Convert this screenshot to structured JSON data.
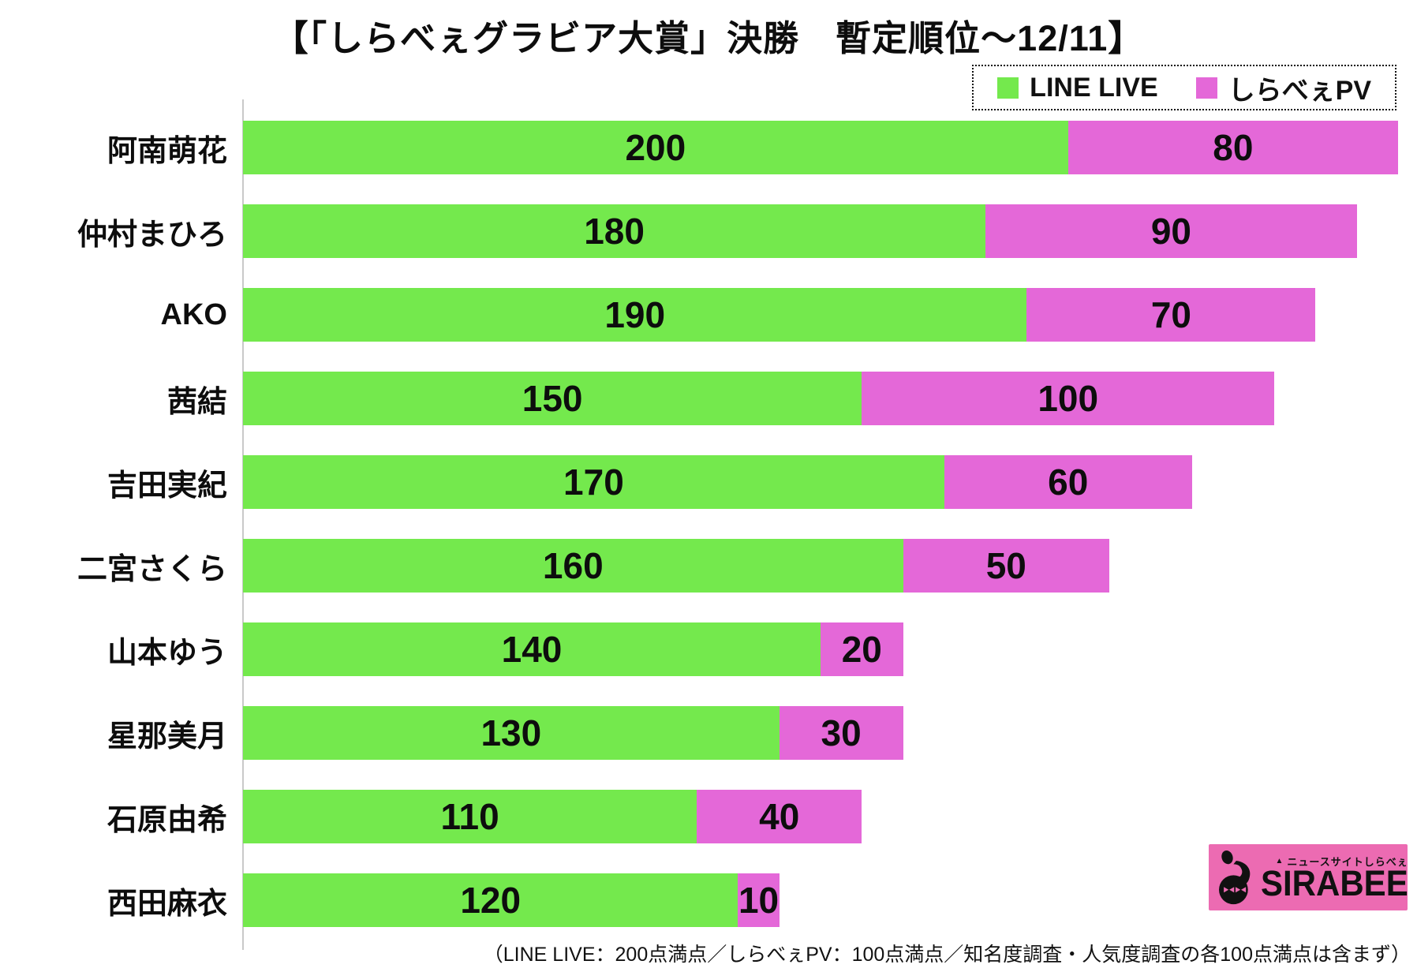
{
  "title": "【「しらべぇグラビア大賞」決勝　暫定順位～12/11】",
  "legend": {
    "items": [
      {
        "label": "LINE LIVE",
        "color": "#74E94D"
      },
      {
        "label": "しらべぇPV",
        "color": "#E468D8"
      }
    ]
  },
  "chart_data": {
    "type": "bar",
    "orientation": "horizontal",
    "stacked": true,
    "title": "【「しらべぇグラビア大賞」決勝　暫定順位～12/11】",
    "categories": [
      "阿南萌花",
      "仲村まひろ",
      "AKO",
      "茜結",
      "吉田実紀",
      "二宮さくら",
      "山本ゆう",
      "星那美月",
      "石原由希",
      "西田麻衣"
    ],
    "series": [
      {
        "name": "LINE LIVE",
        "color": "#74E94D",
        "values": [
          200,
          180,
          190,
          150,
          170,
          160,
          140,
          130,
          110,
          120
        ]
      },
      {
        "name": "しらべぇPV",
        "color": "#E468D8",
        "values": [
          80,
          90,
          70,
          100,
          60,
          50,
          20,
          30,
          40,
          10
        ]
      }
    ],
    "xlim": [
      0,
      280
    ],
    "grid": false,
    "legend_position": "top-right",
    "value_labels": "inside-center"
  },
  "footer_note": "（LINE LIVE：200点満点／しらべぇPV：100点満点／知名度調査・人気度調査の各100点満点は含まず）",
  "logo": {
    "main_text": "SIRABEE",
    "tagline": "ニュースサイトしらべぇ",
    "triangle": "▲",
    "bg_color": "#EC6BB2"
  }
}
